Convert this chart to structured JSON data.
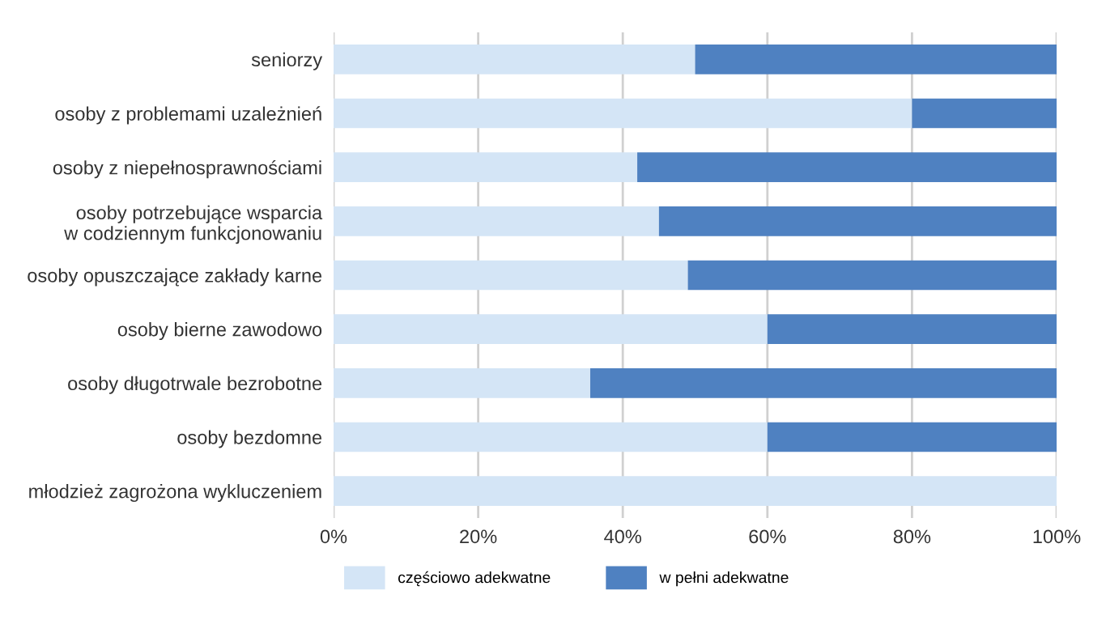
{
  "chart_data": {
    "type": "bar",
    "orientation": "horizontal",
    "stacked": true,
    "categories": [
      "seniorzy",
      "osoby z problemami uzależnień",
      "osoby z niepełnosprawnościami",
      "osoby potrzebujące wsparcia\nw codziennym funkcjonowaniu",
      "osoby opuszczające zakłady karne",
      "osoby bierne zawodowo",
      "osoby długotrwale bezrobotne",
      "osoby bezdomne",
      "młodzież zagrożona wykluczeniem"
    ],
    "series": [
      {
        "name": "częściowo adekwatne",
        "color": "#d4e5f6",
        "values": [
          50,
          80,
          42,
          45,
          49,
          60,
          35.5,
          60,
          100
        ]
      },
      {
        "name": "w pełni adekwatne",
        "color": "#4f81c1",
        "values": [
          50,
          20,
          58,
          55,
          51,
          40,
          64.5,
          40,
          0
        ]
      }
    ],
    "xlim": [
      0,
      100
    ],
    "xticks": [
      {
        "value": 0,
        "label": "0%"
      },
      {
        "value": 20,
        "label": "20%"
      },
      {
        "value": 40,
        "label": "40%"
      },
      {
        "value": 60,
        "label": "60%"
      },
      {
        "value": 80,
        "label": "80%"
      },
      {
        "value": 100,
        "label": "100%"
      }
    ],
    "grid": "x",
    "legend": "bottom"
  }
}
